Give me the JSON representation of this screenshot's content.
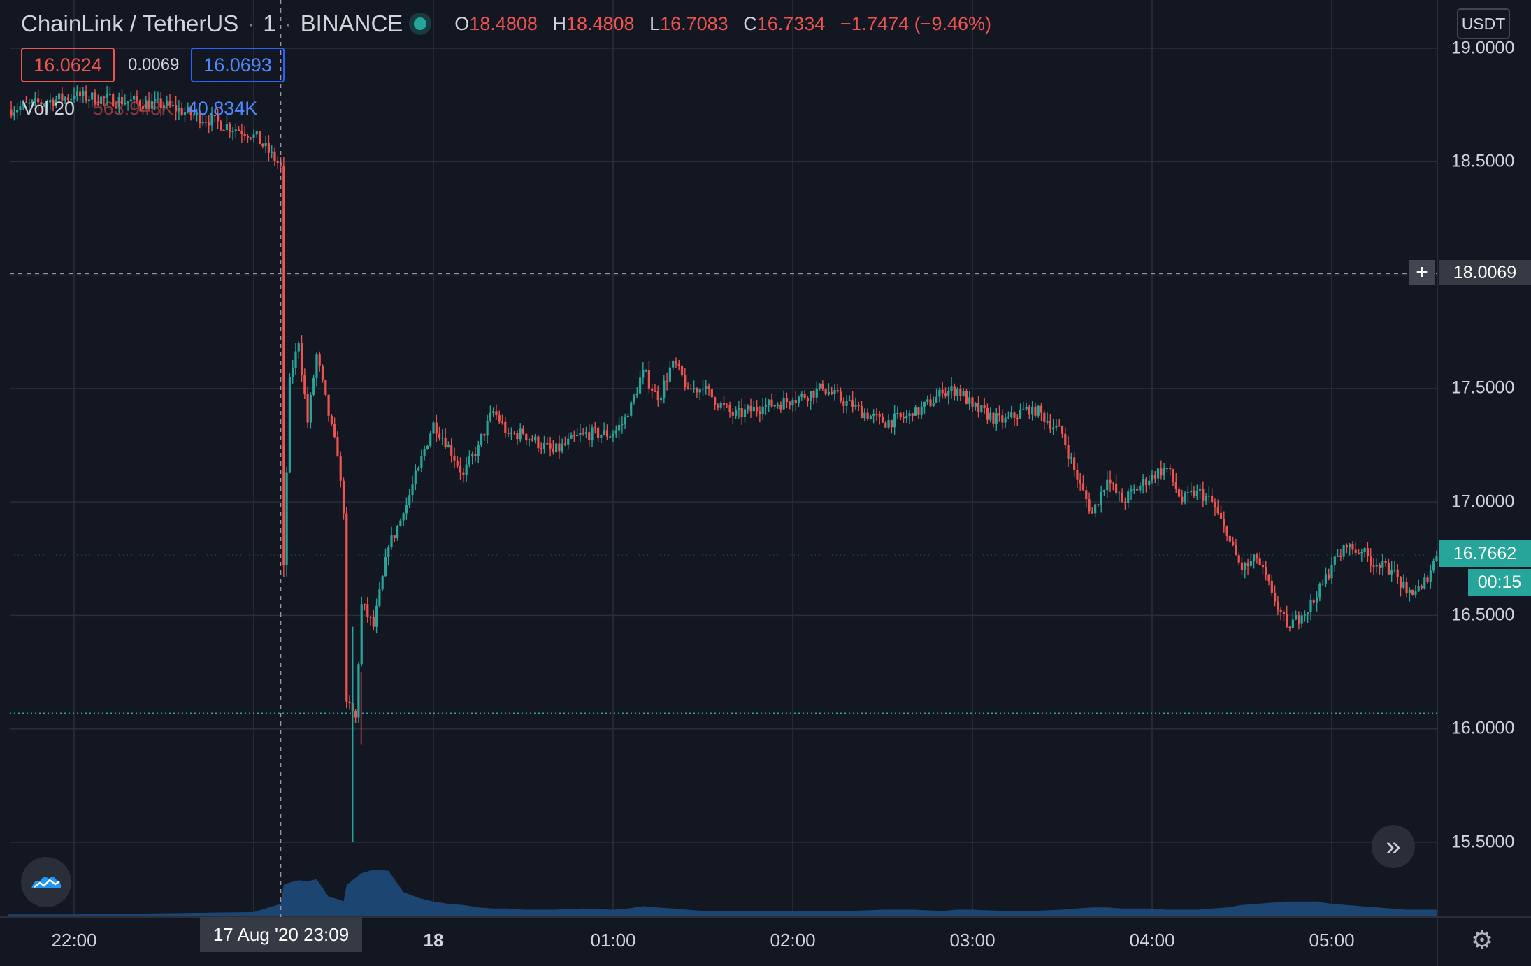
{
  "header": {
    "symbol": "ChainLink / TetherUS",
    "interval": "1",
    "exchange": "BINANCE",
    "ohlc": {
      "o_label": "O",
      "o": "18.4808",
      "h_label": "H",
      "h": "18.4808",
      "l_label": "L",
      "l": "16.7083",
      "c_label": "C",
      "c": "16.7334",
      "change": "−1.7474 (−9.46%)"
    }
  },
  "order_panel": {
    "sell_price": "16.0624",
    "spread": "0.0069",
    "buy_price": "16.0693"
  },
  "volume_legend": {
    "label": "Vol 20",
    "value1": "563.948K",
    "value2": "40.834K"
  },
  "currency": "USDT",
  "y_axis": {
    "labels": [
      "19.0000",
      "18.5000",
      "17.5000",
      "17.0000",
      "16.5000",
      "16.0000",
      "15.5000"
    ],
    "crosshair_price": "18.0069",
    "last_price": "16.7662",
    "countdown": "00:15"
  },
  "x_axis": {
    "labels": [
      "22:00",
      "18",
      "01:00",
      "02:00",
      "03:00",
      "04:00",
      "05:00"
    ],
    "crosshair_time": "17 Aug '20   23:09"
  },
  "icons": {
    "logo": "tradingview-logo-icon",
    "scroll": "scroll-to-realtime-icon",
    "settings": "gear-icon"
  },
  "colors": {
    "up": "#26a69a",
    "down": "#ef5350",
    "background": "#131722",
    "grid": "#2a2e39",
    "volume": "#1e4a7a"
  },
  "chart_data": {
    "type": "line",
    "subtype": "candlestick",
    "title": "ChainLink / TetherUS · 1 · BINANCE",
    "xlabel": "",
    "ylabel": "USDT",
    "ylim": [
      15.35,
      19.2
    ],
    "grid": true,
    "x": [
      "21:38",
      "22:00",
      "22:30",
      "23:00",
      "23:09",
      "23:10",
      "23:12",
      "23:15",
      "23:18",
      "23:21",
      "23:25",
      "23:28",
      "23:30",
      "23:31",
      "23:34",
      "23:36",
      "23:40",
      "23:45",
      "23:50",
      "23:55",
      "00:00",
      "00:05",
      "00:10",
      "00:15",
      "00:20",
      "00:25",
      "00:30",
      "00:40",
      "00:50",
      "01:00",
      "01:05",
      "01:10",
      "01:15",
      "01:20",
      "01:25",
      "01:30",
      "01:40",
      "01:50",
      "02:00",
      "02:10",
      "02:20",
      "02:30",
      "02:40",
      "02:50",
      "02:55",
      "03:00",
      "03:10",
      "03:20",
      "03:30",
      "03:35",
      "03:40",
      "03:45",
      "03:50",
      "04:00",
      "04:05",
      "04:10",
      "04:15",
      "04:20",
      "04:25",
      "04:30",
      "04:35",
      "04:40",
      "04:45",
      "04:50",
      "04:55",
      "05:00",
      "05:05",
      "05:10",
      "05:15",
      "05:20",
      "05:25",
      "05:30",
      "05:35"
    ],
    "series": [
      {
        "values": [
          18.73,
          18.79,
          18.75,
          18.62,
          18.48,
          16.72,
          17.55,
          17.7,
          17.35,
          17.65,
          17.38,
          17.2,
          16.95,
          16.12,
          16.05,
          16.55,
          16.45,
          16.8,
          16.95,
          17.15,
          17.35,
          17.25,
          17.12,
          17.25,
          17.4,
          17.3,
          17.3,
          17.22,
          17.3,
          17.3,
          17.38,
          17.58,
          17.45,
          17.62,
          17.5,
          17.5,
          17.38,
          17.42,
          17.45,
          17.5,
          17.42,
          17.35,
          17.38,
          17.48,
          17.5,
          17.42,
          17.35,
          17.42,
          17.3,
          17.1,
          16.95,
          17.1,
          17.0,
          17.12,
          17.15,
          17.0,
          17.05,
          17.0,
          16.85,
          16.7,
          16.75,
          16.6,
          16.45,
          16.5,
          16.58,
          16.72,
          16.8,
          16.78,
          16.72,
          16.7,
          16.6,
          16.62,
          16.76
        ]
      }
    ],
    "volume_series_name": "Vol 20",
    "volume_values": [
      0.1,
      0.1,
      0.2,
      0.3,
      1.0,
      2.6,
      2.8,
      3.0,
      2.9,
      3.1,
      1.6,
      1.4,
      1.2,
      2.6,
      3.2,
      3.6,
      3.9,
      3.8,
      2.0,
      1.5,
      1.2,
      1.0,
      0.9,
      0.7,
      0.6,
      0.6,
      0.5,
      0.5,
      0.6,
      0.5,
      0.6,
      0.8,
      0.7,
      0.6,
      0.5,
      0.4,
      0.4,
      0.4,
      0.4,
      0.4,
      0.4,
      0.5,
      0.5,
      0.4,
      0.5,
      0.5,
      0.4,
      0.4,
      0.5,
      0.6,
      0.7,
      0.7,
      0.6,
      0.6,
      0.5,
      0.5,
      0.5,
      0.6,
      0.7,
      0.9,
      1.0,
      1.1,
      1.2,
      1.2,
      1.2,
      1.0,
      0.9,
      0.8,
      0.7,
      0.6,
      0.5,
      0.5,
      0.5
    ]
  }
}
